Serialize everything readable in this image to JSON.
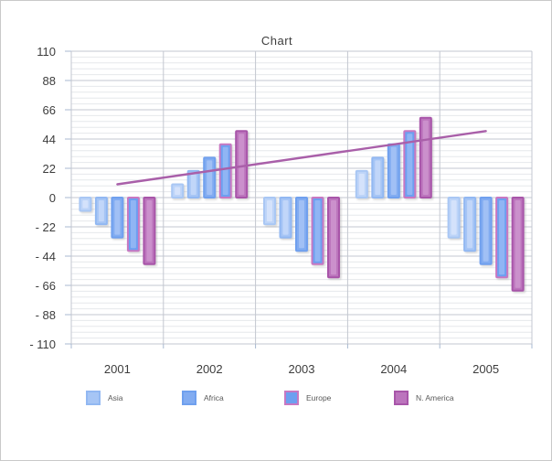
{
  "chart_data": {
    "type": "bar",
    "title": "Chart",
    "categories": [
      "2001",
      "2002",
      "2003",
      "2004",
      "2005"
    ],
    "series": [
      {
        "name": "",
        "values": [
          -10,
          10,
          -20,
          20,
          -30
        ]
      },
      {
        "name": "Asia",
        "values": [
          -20,
          20,
          -30,
          30,
          -40
        ]
      },
      {
        "name": "Africa",
        "values": [
          -30,
          30,
          -40,
          40,
          -50
        ]
      },
      {
        "name": "Europe",
        "values": [
          -40,
          40,
          -50,
          50,
          -60
        ]
      },
      {
        "name": "N. America",
        "values": [
          -50,
          50,
          -60,
          60,
          -70
        ]
      }
    ],
    "trendline": {
      "type": "line",
      "x": [
        "2001",
        "2005"
      ],
      "values": [
        10,
        50
      ]
    },
    "y_axis": {
      "min": -110,
      "max": 110,
      "major_step": 22,
      "minor_divisions_per_major": 5,
      "tick_labels": [
        "110",
        "88",
        "66",
        "44",
        "22",
        "0",
        "- 22",
        "- 44",
        "- 66",
        "- 88",
        "- 110"
      ]
    },
    "x_axis": {
      "tick_labels": [
        "2001",
        "2002",
        "2003",
        "2004",
        "2005"
      ]
    },
    "legend": {
      "position": "bottom",
      "entries": [
        {
          "label": "Asia",
          "series": 1
        },
        {
          "label": "Africa",
          "series": 2
        },
        {
          "label": "Europe",
          "series": 3
        },
        {
          "label": "N. America",
          "series": 4
        }
      ]
    },
    "grid": {
      "horizontal_major": true,
      "horizontal_minor": true,
      "vertical_major": true
    }
  },
  "colors": {
    "series": [
      {
        "fill": "#bdd4f8",
        "border": "#a9c7f4",
        "highlight": "#d4e2fb"
      },
      {
        "fill": "#a6c5f5",
        "border": "#92b8f2",
        "highlight": "#c1d6f9"
      },
      {
        "fill": "#82acf1",
        "border": "#6fa0ee",
        "highlight": "#a1c0f5"
      },
      {
        "fill": "#6d9ff0",
        "border": "#c878c2",
        "highlight": "#90b5f4"
      },
      {
        "fill": "#bc74bd",
        "border": "#a855a9",
        "highlight": "#cb90cc"
      }
    ],
    "trendline": "#a95fa9",
    "grid_major": "#c3c7d0",
    "grid_minor": "#e6e8ec",
    "axis_tick": "#a8b8d0",
    "axis_text": "#3d3d3d",
    "legend_text": "#595959",
    "canvas_border": "#c9c9c9",
    "background": "#ffffff"
  }
}
